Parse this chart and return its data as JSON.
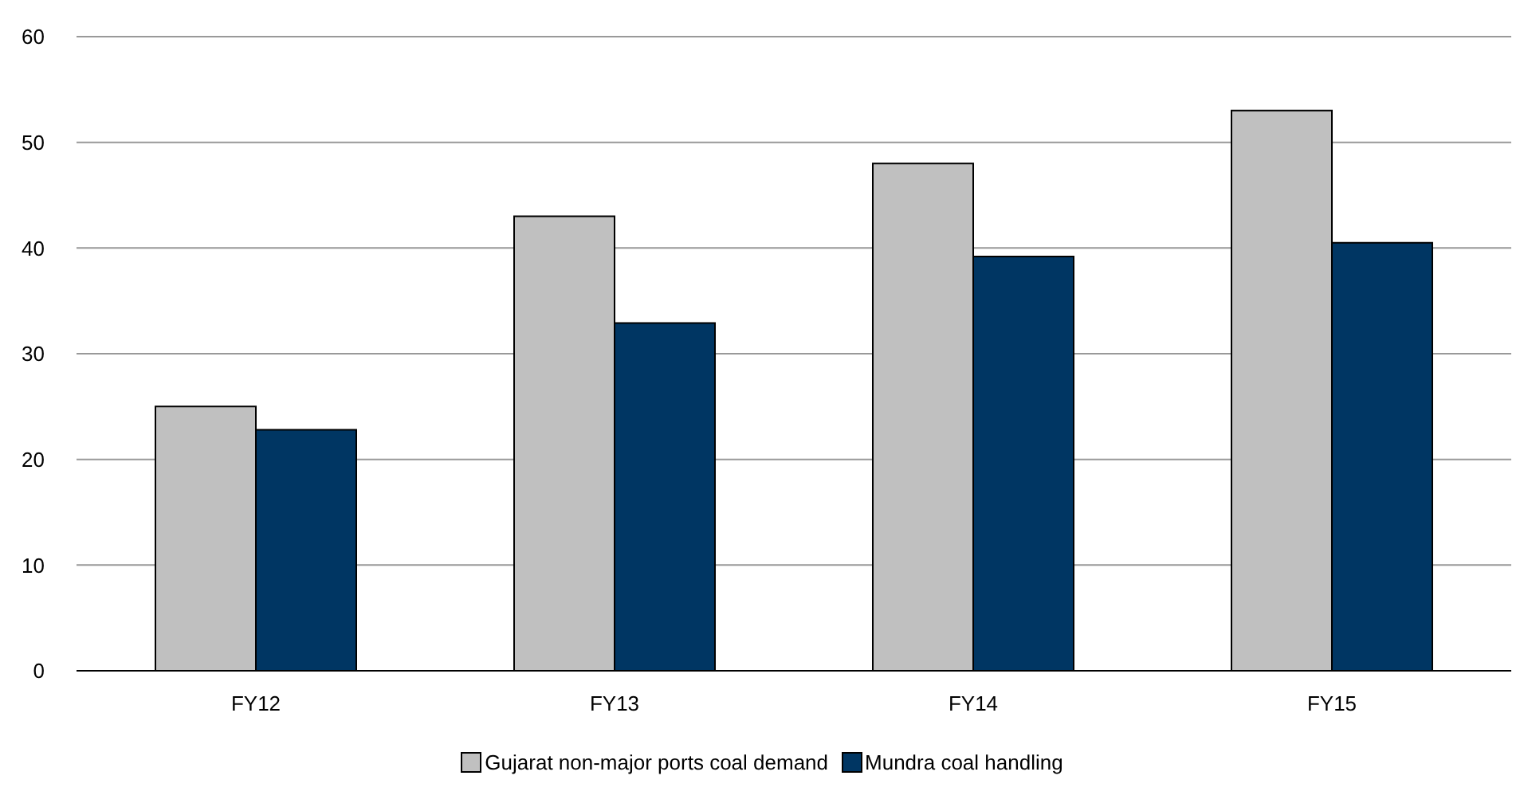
{
  "chart_data": {
    "type": "bar",
    "categories": [
      "FY12",
      "FY13",
      "FY14",
      "FY15"
    ],
    "series": [
      {
        "name": "Gujarat non-major ports coal demand",
        "color": "#c0c0c0",
        "values": [
          25,
          43,
          48,
          53
        ]
      },
      {
        "name": "Mundra coal handling",
        "color": "#003663",
        "values": [
          22.8,
          32.9,
          39.2,
          40.5
        ]
      }
    ],
    "ylim": [
      0,
      60
    ],
    "yticks": [
      0,
      10,
      20,
      30,
      40,
      50,
      60
    ],
    "grid": "y",
    "legend": "bottom"
  }
}
